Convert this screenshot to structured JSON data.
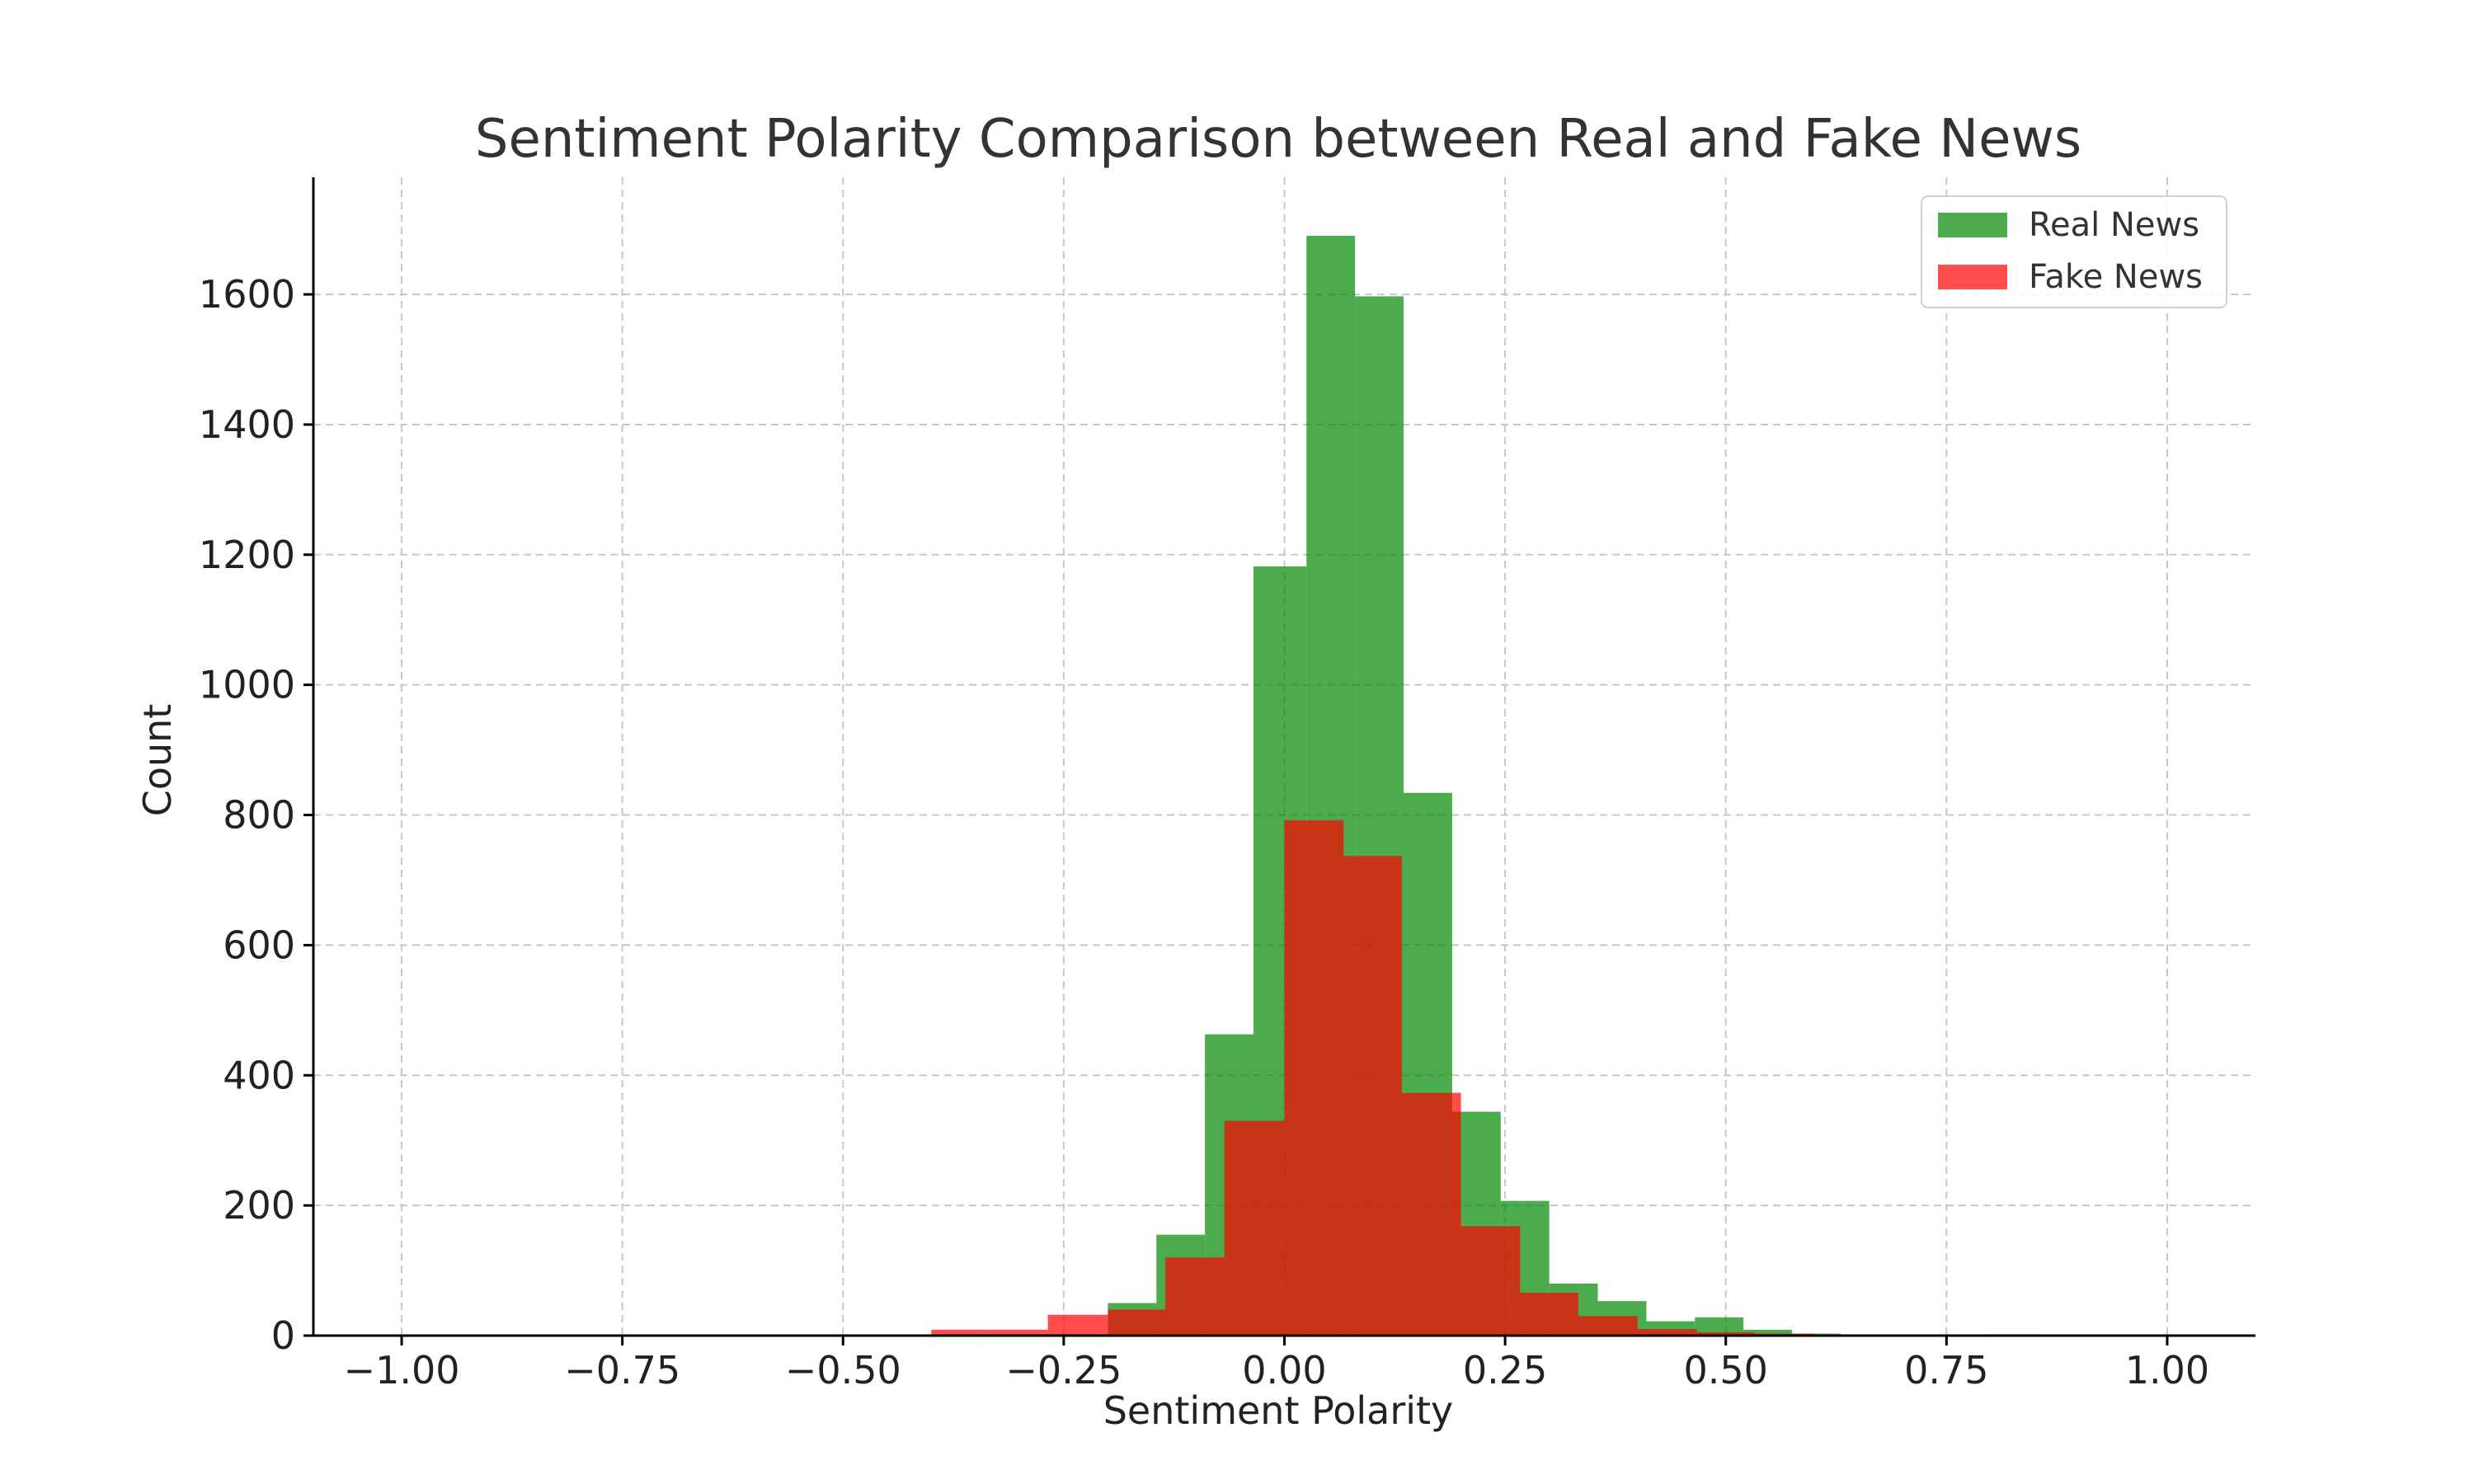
{
  "chart_data": {
    "type": "bar",
    "title": "Sentiment Polarity Comparison between Real and Fake News",
    "xlabel": "Sentiment Polarity",
    "ylabel": "Count",
    "xlim": [
      -1.1,
      1.1
    ],
    "ylim": [
      0,
      1780
    ],
    "x_ticks": [
      "−1.00",
      "−0.75",
      "−0.50",
      "−0.25",
      "0.00",
      "0.25",
      "0.50",
      "0.75",
      "1.00"
    ],
    "x_tick_values": [
      -1.0,
      -0.75,
      -0.5,
      -0.25,
      0.0,
      0.25,
      0.5,
      0.75,
      1.0
    ],
    "y_ticks": [
      "0",
      "200",
      "400",
      "600",
      "800",
      "1000",
      "1200",
      "1400",
      "1600"
    ],
    "y_tick_values": [
      0,
      200,
      400,
      600,
      800,
      1000,
      1200,
      1400,
      1600
    ],
    "grid": true,
    "legend_position": "top-right",
    "series": [
      {
        "name": "Real News",
        "color": "#008800",
        "opacity": 0.7,
        "bins": [
          {
            "x0": -0.2,
            "x1": -0.145,
            "y": 50
          },
          {
            "x0": -0.145,
            "x1": -0.09,
            "y": 155
          },
          {
            "x0": -0.09,
            "x1": -0.035,
            "y": 463
          },
          {
            "x0": -0.035,
            "x1": 0.025,
            "y": 1182
          },
          {
            "x0": 0.025,
            "x1": 0.08,
            "y": 1690
          },
          {
            "x0": 0.08,
            "x1": 0.135,
            "y": 1597
          },
          {
            "x0": 0.135,
            "x1": 0.19,
            "y": 834
          },
          {
            "x0": 0.19,
            "x1": 0.245,
            "y": 344
          },
          {
            "x0": 0.245,
            "x1": 0.3,
            "y": 207
          },
          {
            "x0": 0.3,
            "x1": 0.355,
            "y": 80
          },
          {
            "x0": 0.355,
            "x1": 0.41,
            "y": 53
          },
          {
            "x0": 0.41,
            "x1": 0.465,
            "y": 22
          },
          {
            "x0": 0.465,
            "x1": 0.52,
            "y": 28
          },
          {
            "x0": 0.52,
            "x1": 0.575,
            "y": 9
          },
          {
            "x0": 0.575,
            "x1": 0.63,
            "y": 3
          },
          {
            "x0": 0.8,
            "x1": 0.855,
            "y": 2
          }
        ]
      },
      {
        "name": "Fake News",
        "color": "#ff0000",
        "opacity": 0.7,
        "bins": [
          {
            "x0": -0.4,
            "x1": -0.335,
            "y": 9
          },
          {
            "x0": -0.335,
            "x1": -0.268,
            "y": 9
          },
          {
            "x0": -0.268,
            "x1": -0.2,
            "y": 32
          },
          {
            "x0": -0.2,
            "x1": -0.135,
            "y": 40
          },
          {
            "x0": -0.135,
            "x1": -0.068,
            "y": 120
          },
          {
            "x0": -0.068,
            "x1": 0.0,
            "y": 330
          },
          {
            "x0": 0.0,
            "x1": 0.067,
            "y": 792
          },
          {
            "x0": 0.067,
            "x1": 0.133,
            "y": 737
          },
          {
            "x0": 0.133,
            "x1": 0.2,
            "y": 373
          },
          {
            "x0": 0.2,
            "x1": 0.267,
            "y": 168
          },
          {
            "x0": 0.267,
            "x1": 0.333,
            "y": 66
          },
          {
            "x0": 0.333,
            "x1": 0.4,
            "y": 30
          },
          {
            "x0": 0.4,
            "x1": 0.467,
            "y": 10
          },
          {
            "x0": 0.467,
            "x1": 0.533,
            "y": 5
          },
          {
            "x0": 0.533,
            "x1": 0.6,
            "y": 3
          }
        ]
      }
    ]
  }
}
